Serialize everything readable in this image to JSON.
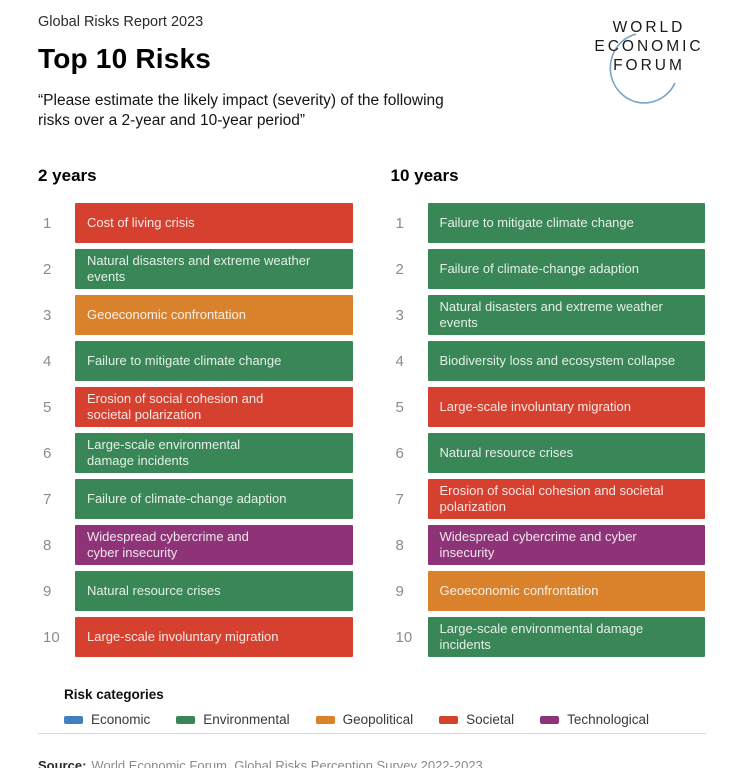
{
  "header": {
    "report": "Global Risks Report 2023",
    "title": "Top 10 Risks",
    "quote": "“Please estimate the likely impact (severity) of the following\nrisks over a 2-year and 10-year period”",
    "logo": [
      "WORLD",
      "ECONOMIC",
      "FORUM"
    ]
  },
  "colors": {
    "Economic": "#3d81c2",
    "Environmental": "#398656",
    "Geopolitical": "#d9822b",
    "Societal": "#d6402f",
    "Technological": "#8e3377"
  },
  "chart_data": {
    "type": "table",
    "title": "Top 10 Risks",
    "subtitle": "“Please estimate the likely impact (severity) of the following risks over a 2-year and 10-year period”",
    "legend_position": "bottom",
    "categories": [
      "Economic",
      "Environmental",
      "Geopolitical",
      "Societal",
      "Technological"
    ],
    "columns": [
      {
        "label": "2 years",
        "risks": [
          {
            "rank": 1,
            "label": "Cost of living crisis",
            "category": "Societal"
          },
          {
            "rank": 2,
            "label": "Natural disasters and extreme weather\nevents",
            "category": "Environmental"
          },
          {
            "rank": 3,
            "label": "Geoeconomic confrontation",
            "category": "Geopolitical"
          },
          {
            "rank": 4,
            "label": "Failure to mitigate climate change",
            "category": "Environmental"
          },
          {
            "rank": 5,
            "label": "Erosion of social cohesion and\nsocietal polarization",
            "category": "Societal"
          },
          {
            "rank": 6,
            "label": "Large-scale environmental\ndamage incidents",
            "category": "Environmental"
          },
          {
            "rank": 7,
            "label": "Failure of climate-change adaption",
            "category": "Environmental"
          },
          {
            "rank": 8,
            "label": "Widespread cybercrime and\ncyber insecurity",
            "category": "Technological"
          },
          {
            "rank": 9,
            "label": "Natural resource crises",
            "category": "Environmental"
          },
          {
            "rank": 10,
            "label": "Large-scale involuntary migration",
            "category": "Societal"
          }
        ]
      },
      {
        "label": "10 years",
        "risks": [
          {
            "rank": 1,
            "label": "Failure to mitigate climate change",
            "category": "Environmental"
          },
          {
            "rank": 2,
            "label": "Failure of climate-change adaption",
            "category": "Environmental"
          },
          {
            "rank": 3,
            "label": "Natural disasters and extreme weather\nevents",
            "category": "Environmental"
          },
          {
            "rank": 4,
            "label": "Biodiversity loss and ecosystem collapse",
            "category": "Environmental"
          },
          {
            "rank": 5,
            "label": "Large-scale involuntary migration",
            "category": "Societal"
          },
          {
            "rank": 6,
            "label": "Natural resource crises",
            "category": "Environmental"
          },
          {
            "rank": 7,
            "label": "Erosion of social cohesion and societal\npolarization",
            "category": "Societal"
          },
          {
            "rank": 8,
            "label": "Widespread cybercrime and cyber\ninsecurity",
            "category": "Technological"
          },
          {
            "rank": 9,
            "label": "Geoeconomic confrontation",
            "category": "Geopolitical"
          },
          {
            "rank": 10,
            "label": "Large-scale environmental damage\nincidents",
            "category": "Environmental"
          }
        ]
      }
    ]
  },
  "legend": {
    "title": "Risk categories"
  },
  "source": {
    "prefix": "Source:",
    "text": "World Economic Forum, Global Risks Perception Survey 2022-2023"
  }
}
